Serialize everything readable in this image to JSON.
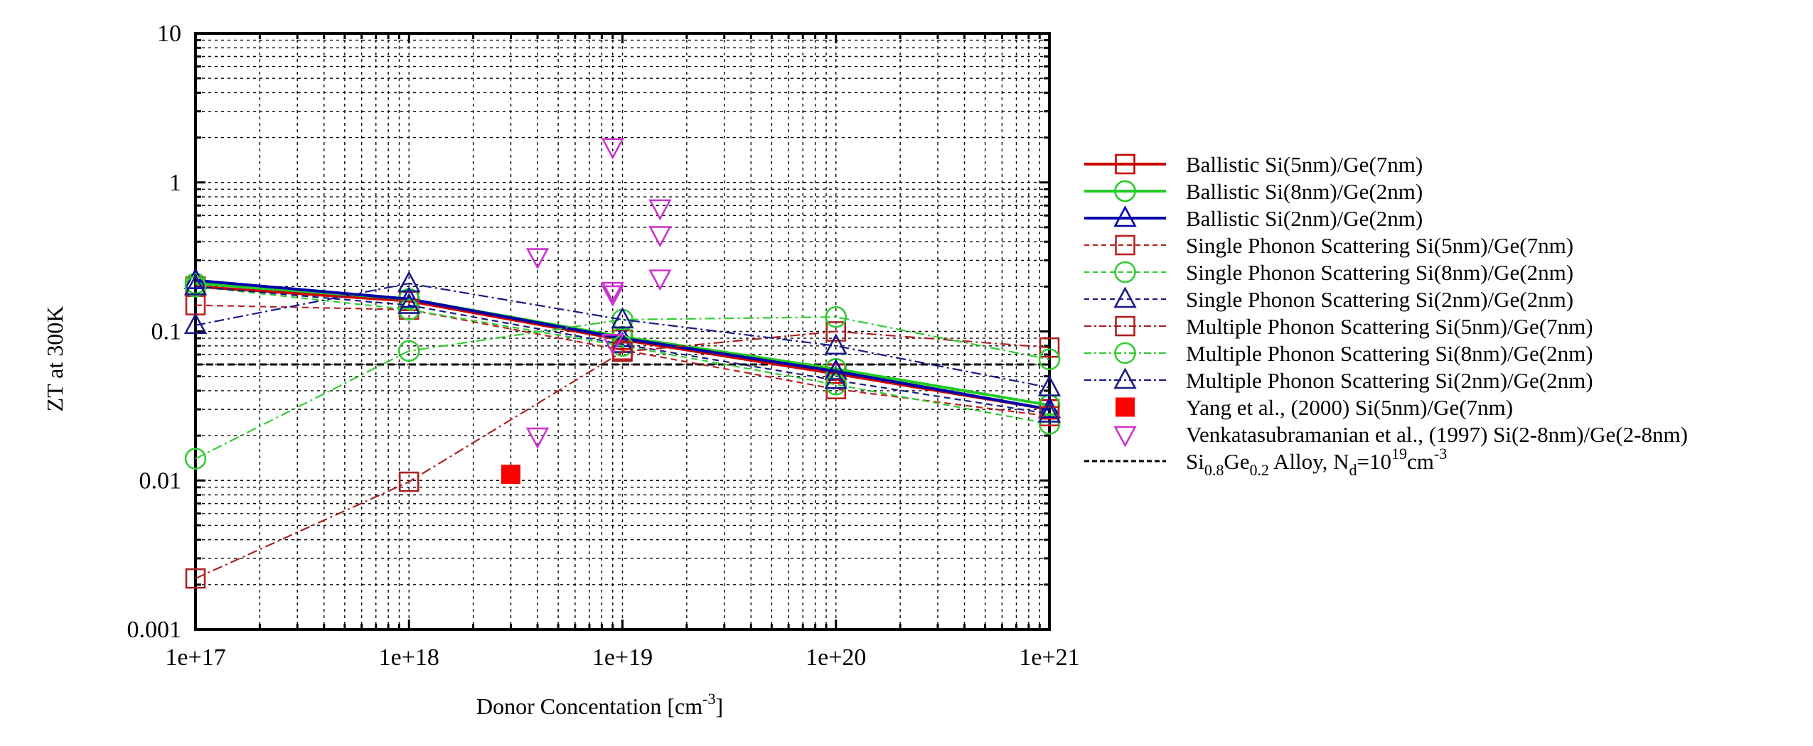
{
  "chart_data": {
    "type": "line",
    "title": "",
    "xlabel": "Donor Concentation [cm",
    "xlabel_sup": "-3",
    "xlabel_end": "]",
    "ylabel": "ZT at 300K",
    "xscale": "log",
    "yscale": "log",
    "xlim": [
      1e+17,
      1e+21
    ],
    "ylim": [
      0.001,
      10
    ],
    "grid": true,
    "legend_position": "right-outside",
    "x_ticks": [
      1e+17,
      1e+18,
      1e+19,
      1e+20,
      1e+21
    ],
    "x_tick_labels": [
      "1e+17",
      "1e+18",
      "1e+19",
      "1e+20",
      "1e+21"
    ],
    "y_ticks": [
      0.001,
      0.01,
      0.1,
      1,
      10
    ],
    "y_tick_labels": [
      "0.001",
      "0.01",
      "0.1",
      "1",
      "10"
    ],
    "x": [
      1e+17,
      1e+18,
      1e+19,
      1e+20,
      1e+21
    ],
    "series": [
      {
        "name": "Ballistic Si(5nm)/Ge(7nm)",
        "color": "#cc0000",
        "dash": "solid",
        "marker": "square",
        "width": "thick",
        "values": [
          0.2,
          0.16,
          0.088,
          0.052,
          0.03
        ]
      },
      {
        "name": "Ballistic Si(8nm)/Ge(2nm)",
        "color": "#22cc22",
        "dash": "solid",
        "marker": "circle",
        "width": "thick",
        "values": [
          0.21,
          0.165,
          0.092,
          0.056,
          0.032
        ]
      },
      {
        "name": "Ballistic Si(2nm)/Ge(2nm)",
        "color": "#0000aa",
        "dash": "solid",
        "marker": "triangle",
        "width": "thick",
        "values": [
          0.22,
          0.165,
          0.09,
          0.054,
          0.03
        ]
      },
      {
        "name": "Single Phonon Scattering Si(5nm)/Ge(7nm)",
        "color": "#bb2222",
        "dash": "dashed",
        "marker": "square",
        "width": "thin",
        "values": [
          0.15,
          0.14,
          0.075,
          0.041,
          0.027
        ]
      },
      {
        "name": "Single Phonon Scattering Si(8nm)/Ge(2nm)",
        "color": "#33cc33",
        "dash": "dashed",
        "marker": "circle",
        "width": "thin",
        "values": [
          0.2,
          0.14,
          0.08,
          0.044,
          0.024
        ]
      },
      {
        "name": "Single Phonon Scattering Si(2nm)/Ge(2nm)",
        "color": "#1a1a88",
        "dash": "dashed",
        "marker": "triangle",
        "width": "thin",
        "values": [
          0.2,
          0.15,
          0.082,
          0.047,
          0.028
        ]
      },
      {
        "name": "Multiple Phonon Scattering Si(5nm)/Ge(7nm)",
        "color": "#aa2222",
        "dash": "dashdot",
        "marker": "square",
        "width": "thin",
        "values": [
          0.0022,
          0.0098,
          0.073,
          0.1,
          0.078
        ]
      },
      {
        "name": "Multiple Phonon Scattering Si(8nm)/Ge(2nm)",
        "color": "#33cc33",
        "dash": "dashdot",
        "marker": "circle",
        "width": "thin",
        "values": [
          0.014,
          0.074,
          0.12,
          0.125,
          0.065
        ]
      },
      {
        "name": "Multiple Phonon Scattering Si(2nm)/Ge(2nm)",
        "color": "#1a1a88",
        "dash": "dashdot",
        "marker": "triangle",
        "width": "thin",
        "values": [
          0.11,
          0.21,
          0.12,
          0.08,
          0.042
        ]
      }
    ],
    "scatter_series": [
      {
        "name": "Yang et al., (2000) Si(5nm)/Ge(7nm)",
        "color": "#ff0000",
        "marker": "filled-square",
        "points": [
          [
            3e+18,
            0.011
          ]
        ]
      },
      {
        "name": "Venkatasubramanian et al., (1997) Si(2-8nm)/Ge(2-8nm)",
        "color": "#cc33cc",
        "marker": "down-triangle",
        "points": [
          [
            4e+18,
            0.32
          ],
          [
            4e+18,
            0.02
          ],
          [
            9e+18,
            1.75
          ],
          [
            9e+18,
            0.19
          ],
          [
            9e+18,
            0.18
          ],
          [
            9e+18,
            0.085
          ],
          [
            1.5e+19,
            0.68
          ],
          [
            1.5e+19,
            0.45
          ],
          [
            1.5e+19,
            0.23
          ]
        ]
      }
    ],
    "reference_line": {
      "name": "Si0.8Ge0.2 Alloy, Nd=10^19 cm^-3",
      "color": "#000000",
      "dash": "dashed",
      "value": 0.06
    },
    "legend_alloy_label": {
      "base1": "Si",
      "sub1": "0.8",
      "base2": "Ge",
      "sub2": "0.2",
      "text3": " Alloy, N",
      "sub3": "d",
      "text4": "=10",
      "sup4": "19",
      "text5": "cm",
      "sup5": "-3"
    }
  }
}
